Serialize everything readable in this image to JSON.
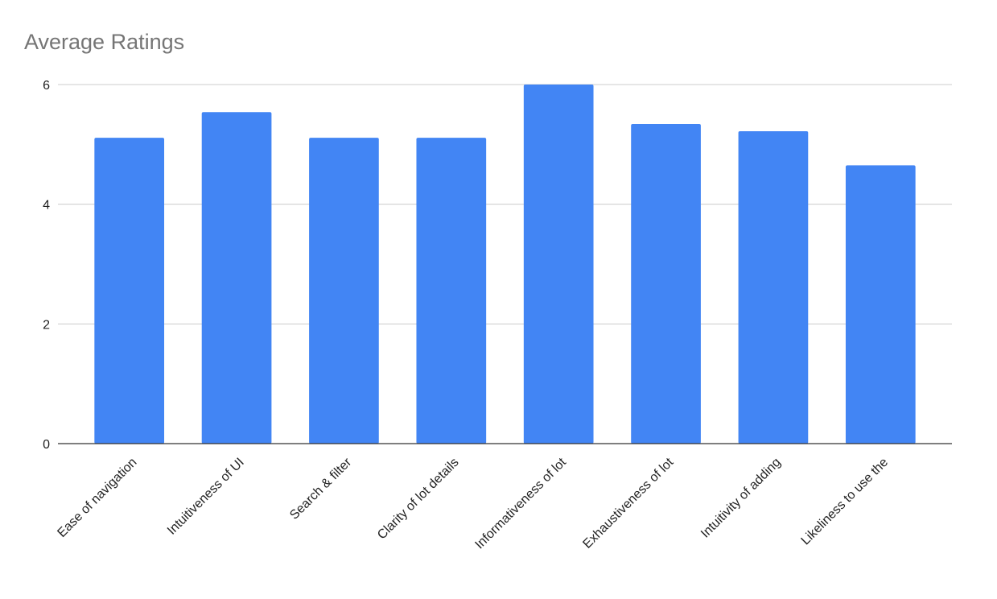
{
  "chart_data": {
    "type": "bar",
    "title": "Average Ratings",
    "categories": [
      "Ease of navigation",
      "Intuitiveness of UI",
      "Search & filter",
      "Clarity of lot details",
      "Informativeness of lot",
      "Exhaustiveness of lot",
      "Intuitivity of adding",
      "Likeliness to use the"
    ],
    "values": [
      5.11,
      5.54,
      5.11,
      5.11,
      6.0,
      5.34,
      5.22,
      4.65
    ],
    "color": "#4285f4",
    "ylim": [
      0,
      6
    ],
    "yticks": [
      0,
      2,
      4,
      6
    ],
    "grid": true
  }
}
